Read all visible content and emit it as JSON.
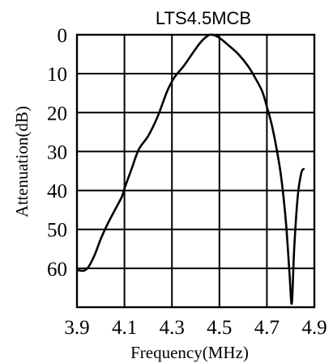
{
  "chart_data": {
    "type": "line",
    "title": "LTS4.5MCB",
    "xlabel": "Frequency(MHz)",
    "ylabel": "Attenuation(dB)",
    "xlim": [
      3.9,
      4.9
    ],
    "ylim": [
      0,
      70
    ],
    "y_inverted": true,
    "grid": true,
    "x_ticks": [
      "3.9",
      "4.1",
      "4.3",
      "4.5",
      "4.7",
      "4.9"
    ],
    "y_ticks": [
      "0",
      "10",
      "20",
      "30",
      "40",
      "50",
      "60"
    ],
    "series": [
      {
        "x": [
          3.905,
          3.93,
          3.95,
          3.975,
          4.0,
          4.03,
          4.06,
          4.09,
          4.1,
          4.13,
          4.16,
          4.2,
          4.24,
          4.28,
          4.31,
          4.35,
          4.39,
          4.42,
          4.45,
          4.47,
          4.5,
          4.54,
          4.58,
          4.62,
          4.65,
          4.68,
          4.7,
          4.72,
          4.74,
          4.76,
          4.78,
          4.795,
          4.805,
          4.815,
          4.83,
          4.845,
          4.855
        ],
        "y": [
          60.5,
          60.6,
          59.5,
          56.5,
          52.5,
          48.5,
          45,
          41.5,
          39.5,
          34.5,
          29.5,
          26,
          21,
          14.5,
          11,
          8,
          4.5,
          2,
          0.3,
          0,
          0.8,
          2.8,
          5,
          8,
          11,
          14.5,
          18.5,
          23,
          29,
          36.5,
          48,
          61,
          69,
          55,
          41.5,
          35.5,
          34.5
        ]
      }
    ]
  }
}
